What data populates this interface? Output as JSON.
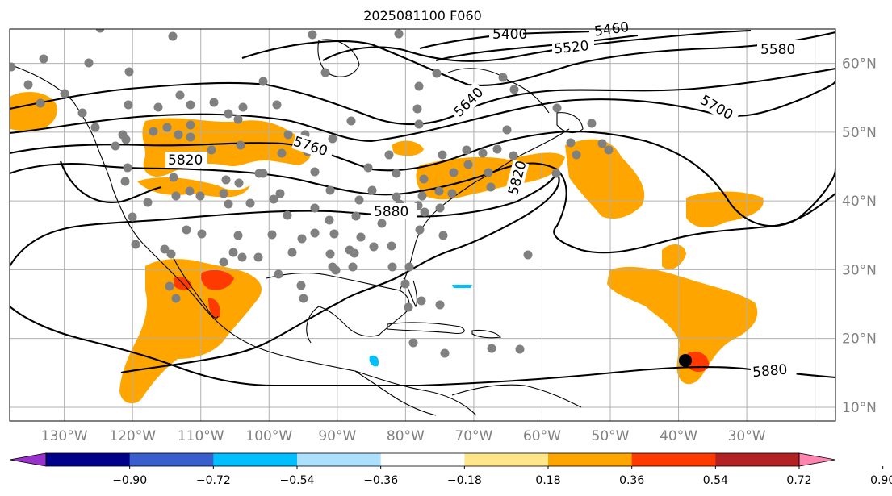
{
  "title": "2025081100 F060",
  "map": {
    "projection": "PlateCarree",
    "lon_range": [
      -138,
      -17
    ],
    "lat_range": [
      8,
      65
    ],
    "lat_ticks": [
      "10°N",
      "20°N",
      "30°N",
      "40°N",
      "50°N",
      "60°N"
    ],
    "lon_ticks": [
      "130°W",
      "120°W",
      "110°W",
      "100°W",
      "90°W",
      "80°W",
      "70°W",
      "60°W",
      "50°W",
      "40°W",
      "30°W"
    ],
    "contour_labels": [
      "5400",
      "5460",
      "5520",
      "5580",
      "5640",
      "5700",
      "5760",
      "5820",
      "5820",
      "5880",
      "5880"
    ],
    "fill_colors": {
      "orange": "#FFA500",
      "red_orange": "#FF3A00",
      "light_blue": "#B3E0FF",
      "deep_sky": "#00BFFF"
    },
    "station_color": "#808080",
    "marker_color": "#000000"
  },
  "colorbar": {
    "ticks": [
      "−0.90",
      "−0.72",
      "−0.54",
      "−0.36",
      "−0.18",
      "0.18",
      "0.36",
      "0.54",
      "0.72",
      "0.90"
    ],
    "colors": [
      "#9932CC",
      "#00008B",
      "#3A5FCD",
      "#00BFFF",
      "#ADDFFF",
      "#FFFFFF",
      "#FFE68A",
      "#FFA500",
      "#FF3A00",
      "#B22222",
      "#FF85B0"
    ]
  }
}
